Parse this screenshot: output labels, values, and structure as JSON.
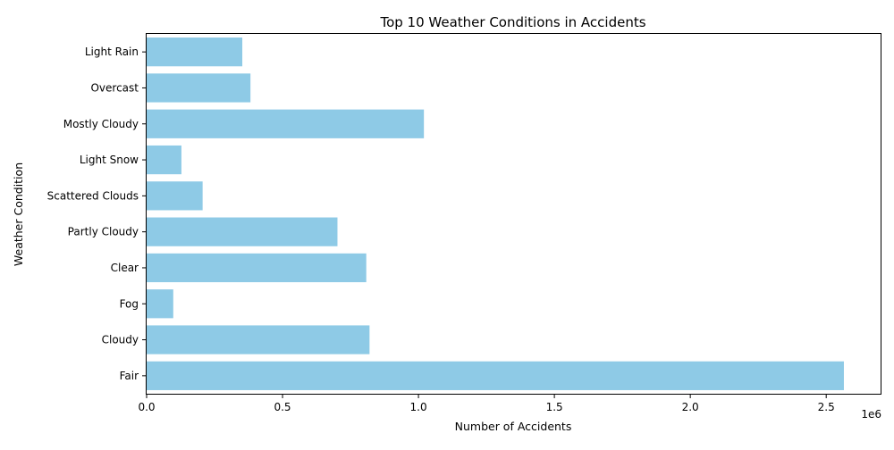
{
  "chart_data": {
    "type": "bar",
    "orientation": "horizontal",
    "title": "Top 10 Weather Conditions in Accidents",
    "xlabel": "Number of Accidents",
    "ylabel": "Weather Condition",
    "x_offset_text": "1e6",
    "categories": [
      "Light Rain",
      "Overcast",
      "Mostly Cloudy",
      "Light Snow",
      "Scattered Clouds",
      "Partly Cloudy",
      "Clear",
      "Fog",
      "Cloudy",
      "Fair"
    ],
    "values": [
      352000,
      382000,
      1020000,
      128000,
      206000,
      702000,
      808000,
      98000,
      820000,
      2565000
    ],
    "xlim": [
      0,
      2700000
    ],
    "xticks": [
      0,
      500000,
      1000000,
      1500000,
      2000000,
      2500000
    ],
    "xtick_labels": [
      "0.0",
      "0.5",
      "1.0",
      "1.5",
      "2.0",
      "2.5"
    ],
    "grid": false,
    "legend": "none",
    "bar_color": "#8ecae6"
  }
}
